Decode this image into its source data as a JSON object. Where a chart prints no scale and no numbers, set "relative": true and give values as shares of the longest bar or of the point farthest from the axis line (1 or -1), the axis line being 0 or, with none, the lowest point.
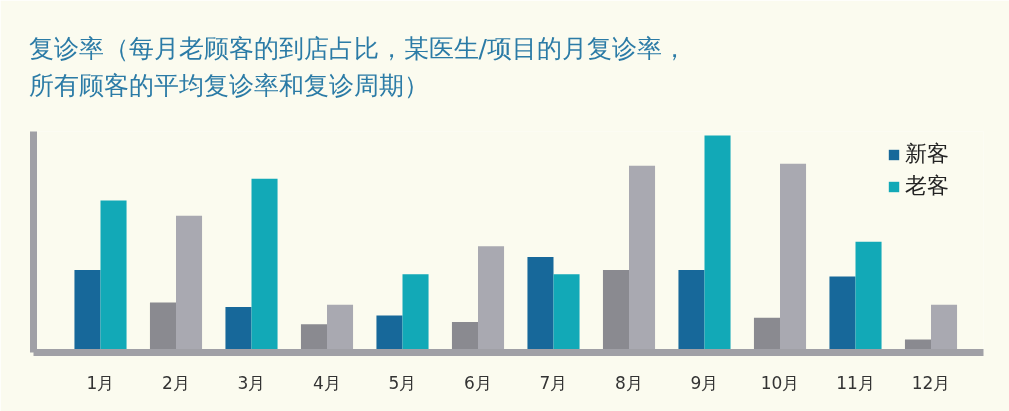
{
  "chart_data": {
    "type": "bar",
    "title": "复诊率（每月老顾客的到店占比，某医生/项目的月复诊率，所有顾客的平均复诊率和复诊周期）",
    "categories": [
      "1月",
      "2月",
      "3月",
      "4月",
      "5月",
      "6月",
      "7月",
      "8月",
      "9月",
      "10月",
      "11月",
      "12月"
    ],
    "relative": true,
    "series": [
      {
        "name": "新客",
        "colors": [
          "#17689a",
          "#8a8a90",
          "#17689a",
          "#8a8a90",
          "#17689a",
          "#8a8a90",
          "#17689a",
          "#8a8a90",
          "#17689a",
          "#8a8a90",
          "#17689a",
          "#8a8a90"
        ],
        "values": [
          0.38,
          0.23,
          0.21,
          0.13,
          0.17,
          0.14,
          0.44,
          0.38,
          0.38,
          0.16,
          0.35,
          0.06
        ]
      },
      {
        "name": "老客",
        "colors": [
          "#12a9b7",
          "#a9a9b1",
          "#12a9b7",
          "#a9a9b1",
          "#12a9b7",
          "#a9a9b1",
          "#12a9b7",
          "#a9a9b1",
          "#12a9b7",
          "#a9a9b1",
          "#12a9b7",
          "#a9a9b1"
        ],
        "values": [
          0.7,
          0.63,
          0.8,
          0.22,
          0.36,
          0.49,
          0.36,
          0.86,
          1.0,
          0.87,
          0.51,
          0.22
        ]
      }
    ],
    "legend": "top right",
    "grid": false
  }
}
